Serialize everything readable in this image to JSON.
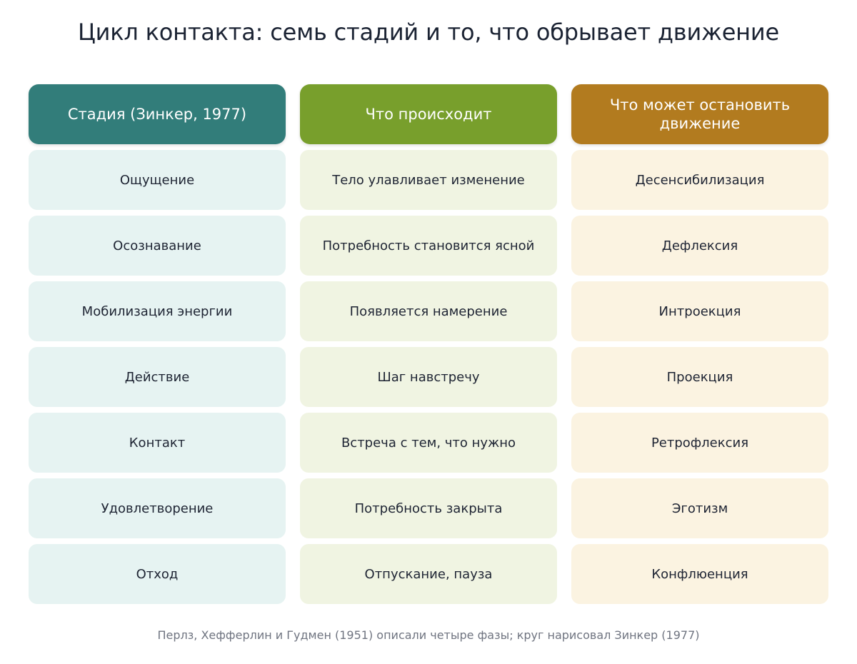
{
  "title": "Цикл контакта: семь стадий и то, что обрывает движение",
  "columns": [
    {
      "header": "Стадия (Зинкер, 1977)",
      "cells": [
        "Ощущение",
        "Осознавание",
        "Мобилизация энергии",
        "Действие",
        "Контакт",
        "Удовлетворение",
        "Отход"
      ]
    },
    {
      "header": "Что происходит",
      "cells": [
        "Тело улавливает изменение",
        "Потребность становится ясной",
        "Появляется намерение",
        "Шаг навстречу",
        "Встреча с тем, что нужно",
        "Потребность закрыта",
        "Отпускание, пауза"
      ]
    },
    {
      "header": "Что может остановить движение",
      "cells": [
        "Десенсибилизация",
        "Дефлексия",
        "Интроекция",
        "Проекция",
        "Ретрофлексия",
        "Эготизм",
        "Конфлюенция"
      ]
    }
  ],
  "footnote": "Перлз, Хефферлин и Гудмен (1951) описали четыре фазы; круг нарисовал Зинкер (1977)",
  "colors": {
    "stage_header": "#327d7a",
    "stage_cell": "#e6f3f2",
    "happens_header": "#789f2c",
    "happens_cell": "#f0f4e2",
    "stop_header": "#b27b1f",
    "stop_cell": "#fbf3e1"
  }
}
